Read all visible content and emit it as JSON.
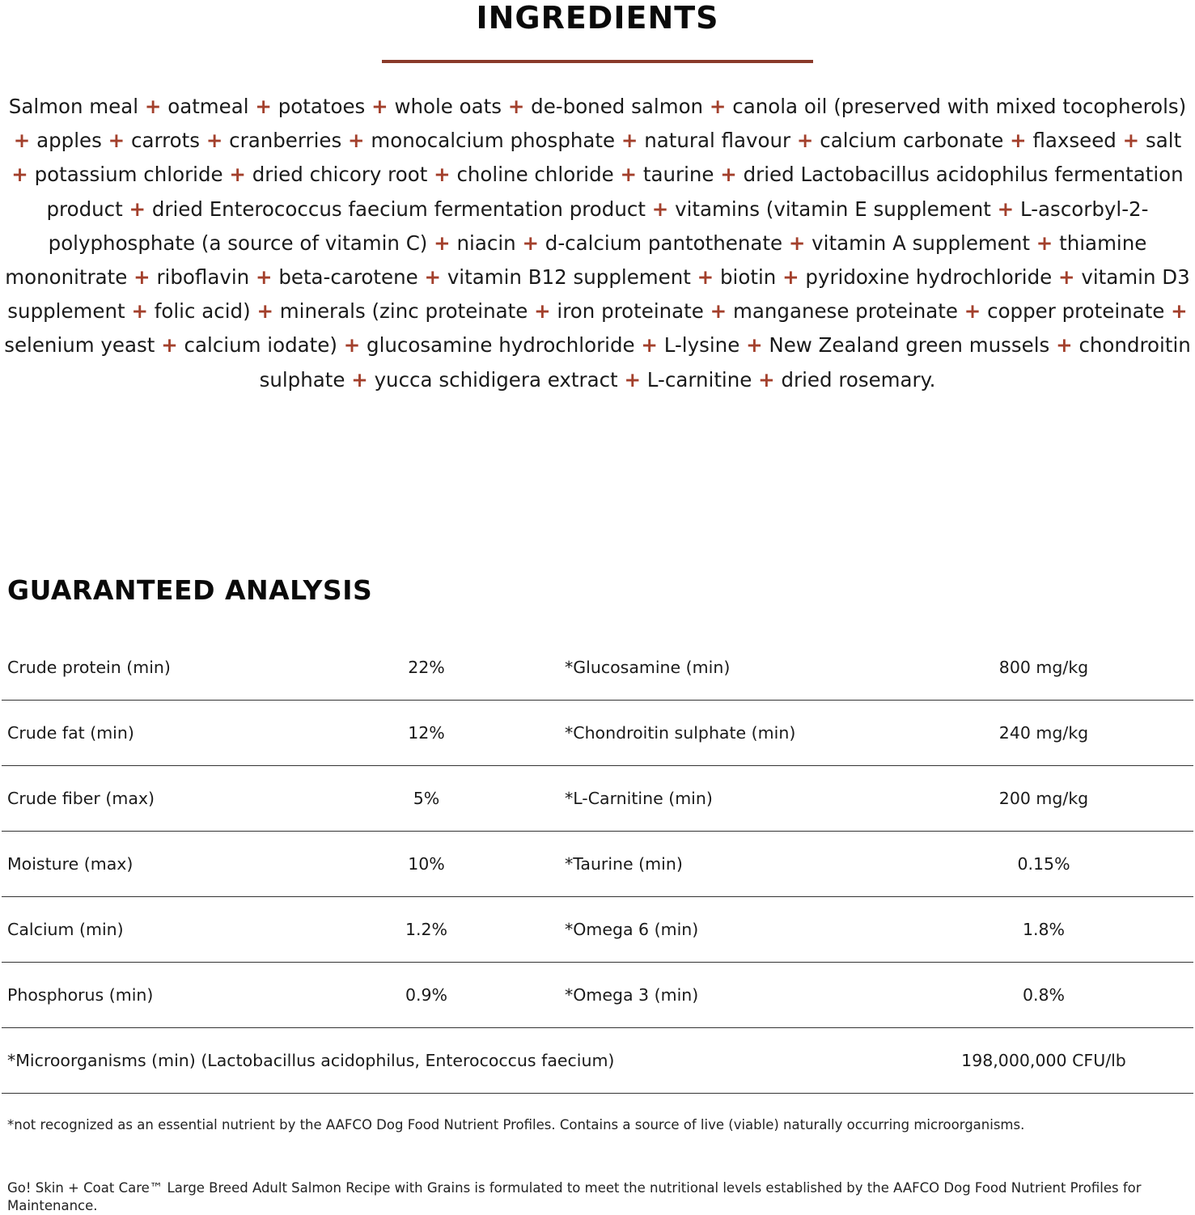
{
  "ingredients": {
    "title": "INGREDIENTS",
    "accent_color": "#8a3a2a",
    "separator": "+",
    "items": [
      "Salmon meal",
      "oatmeal",
      "potatoes",
      "whole oats",
      "de-boned salmon",
      "canola oil (preserved with mixed tocopherols)",
      "apples",
      "carrots",
      "cranberries",
      "monocalcium phosphate",
      "natural flavour",
      "calcium carbonate",
      "flaxseed",
      "salt",
      "potassium chloride",
      "dried chicory root",
      "choline chloride",
      "taurine",
      "dried Lactobacillus acidophilus fermentation product",
      "dried Enterococcus faecium fermentation product",
      "vitamins (vitamin E supplement",
      "L-ascorbyl-2-polyphosphate (a source of vitamin C)",
      "niacin",
      "d-calcium pantothenate",
      "vitamin A supplement",
      "thiamine mononitrate",
      "riboflavin",
      "beta-carotene",
      "vitamin B12 supplement",
      "biotin",
      "pyridoxine hydrochloride",
      "vitamin D3 supplement",
      "folic acid)",
      "minerals (zinc proteinate",
      "iron proteinate",
      "manganese proteinate",
      "copper proteinate",
      "selenium yeast",
      "calcium iodate)",
      "glucosamine hydrochloride",
      "L-lysine",
      "New Zealand green mussels",
      "chondroitin sulphate",
      "yucca schidigera extract",
      "L-carnitine",
      "dried rosemary."
    ]
  },
  "analysis": {
    "title": "GUARANTEED ANALYSIS",
    "rows": [
      {
        "label": "Crude protein (min)",
        "value": "22%",
        "label2": "*Glucosamine (min)",
        "value2": "800 mg/kg"
      },
      {
        "label": "Crude fat (min)",
        "value": "12%",
        "label2": "*Chondroitin sulphate (min)",
        "value2": "240 mg/kg"
      },
      {
        "label": "Crude fiber (max)",
        "value": "5%",
        "label2": "*L-Carnitine (min)",
        "value2": "200 mg/kg"
      },
      {
        "label": "Moisture (max)",
        "value": "10%",
        "label2": "*Taurine (min)",
        "value2": "0.15%"
      },
      {
        "label": "Calcium (min)",
        "value": "1.2%",
        "label2": "*Omega 6 (min)",
        "value2": "1.8%"
      },
      {
        "label": "Phosphorus (min)",
        "value": "0.9%",
        "label2": "*Omega 3 (min)",
        "value2": "0.8%"
      }
    ],
    "micro": {
      "label": "*Microorganisms (min) (Lactobacillus acidophilus, Enterococcus faecium)",
      "value": "198,000,000 CFU/lb"
    },
    "footnote": "*not recognized as an essential nutrient by the AAFCO Dog Food Nutrient Profiles. Contains a source of live (viable) naturally occurring microorganisms.",
    "statement": "Go! Skin + Coat Care™ Large Breed Adult Salmon Recipe with Grains is formulated to meet the nutritional levels established by the AAFCO Dog Food Nutrient Profiles for Maintenance."
  }
}
